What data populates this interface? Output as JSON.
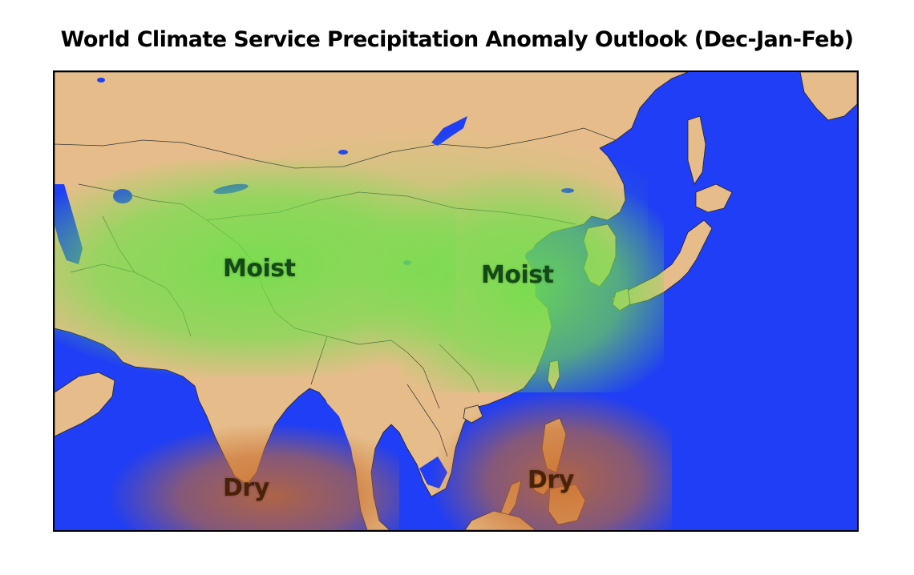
{
  "title": "World Climate Service Precipitation Anomaly Outlook (Dec-Jan-Feb)",
  "colors": {
    "ocean": "#1f3ef5",
    "land": "#e6bd8a",
    "moist": "#6fe04a",
    "dry": "#c86a28",
    "moist_text": "#134a16",
    "dry_text": "#4a2208"
  },
  "labels": {
    "moist_west": "Moist",
    "moist_east": "Moist",
    "dry_india": "Dry",
    "dry_philippines": "Dry"
  }
}
